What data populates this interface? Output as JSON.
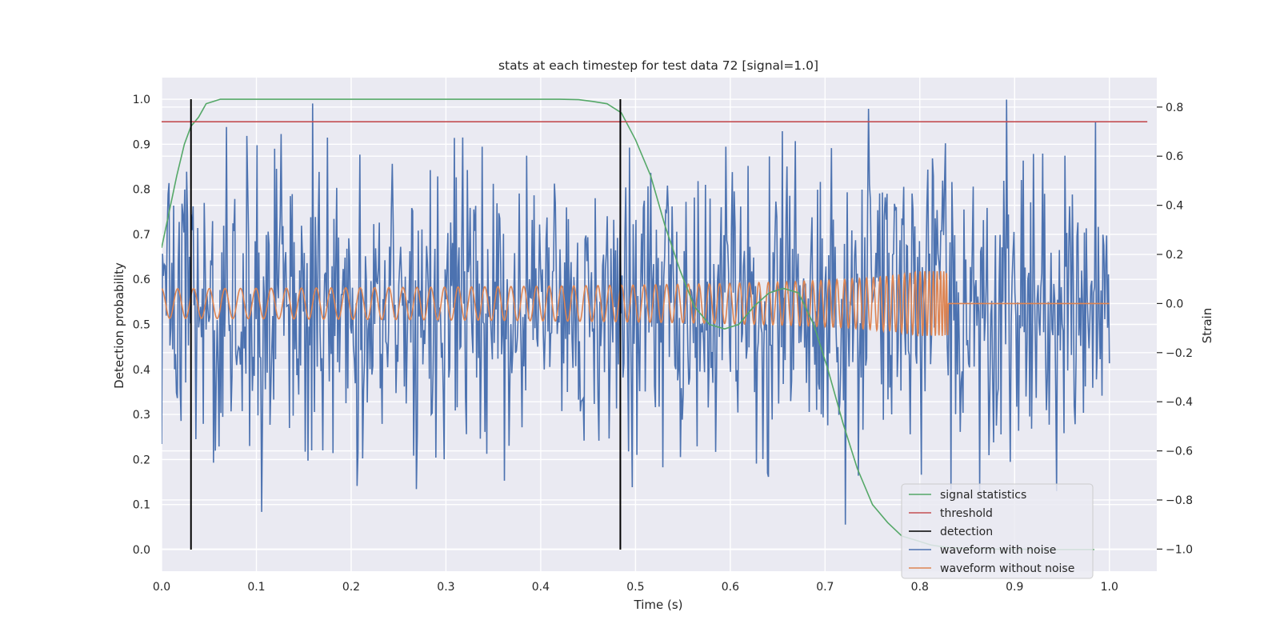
{
  "chart_data": {
    "type": "line",
    "title": "stats at each timestep for test data 72 [signal=1.0]",
    "xlabel": "Time (s)",
    "ylabel_left": "Detection probability",
    "ylabel_right": "Strain",
    "xlim": [
      0.0,
      1.05
    ],
    "ylim_left": [
      -0.048,
      1.048
    ],
    "ylim_right": [
      -1.09,
      0.92
    ],
    "x_ticks": [
      0.0,
      0.1,
      0.2,
      0.3,
      0.4,
      0.5,
      0.6,
      0.7,
      0.8,
      0.9,
      1.0
    ],
    "x_tick_labels": [
      "0.0",
      "0.1",
      "0.2",
      "0.3",
      "0.4",
      "0.5",
      "0.6",
      "0.7",
      "0.8",
      "0.9",
      "1.0"
    ],
    "y_left_ticks": [
      0.0,
      0.1,
      0.2,
      0.3,
      0.4,
      0.5,
      0.6,
      0.7,
      0.8,
      0.9,
      1.0
    ],
    "y_left_tick_labels": [
      "0.0",
      "0.1",
      "0.2",
      "0.3",
      "0.4",
      "0.5",
      "0.6",
      "0.7",
      "0.8",
      "0.9",
      "1.0"
    ],
    "y_right_ticks": [
      -1.0,
      -0.8,
      -0.6,
      -0.4,
      -0.2,
      0.0,
      0.2,
      0.4,
      0.6,
      0.8
    ],
    "y_right_tick_labels": [
      "−1.0",
      "−0.8",
      "−0.6",
      "−0.4",
      "−0.2",
      "0.0",
      "0.2",
      "0.4",
      "0.6",
      "0.8"
    ],
    "grid": true,
    "legend_position": "lower-right",
    "colors": {
      "background": "#eaeaf2",
      "grid": "#ffffff",
      "signal_statistics": "#55a868",
      "threshold": "#c44e52",
      "detection": "#000000",
      "waveform_with_noise": "#4c72b0",
      "waveform_without_noise": "#dd8452"
    },
    "series": [
      {
        "name": "signal statistics",
        "axis": "left",
        "x": [
          0.0,
          0.008,
          0.016,
          0.024,
          0.031,
          0.039,
          0.047,
          0.062,
          0.078,
          0.1,
          0.2,
          0.3,
          0.4,
          0.42,
          0.44,
          0.455,
          0.47,
          0.485,
          0.5,
          0.516,
          0.531,
          0.547,
          0.562,
          0.578,
          0.594,
          0.609,
          0.625,
          0.641,
          0.656,
          0.664,
          0.672,
          0.688,
          0.703,
          0.719,
          0.734,
          0.75,
          0.766,
          0.781,
          0.797,
          0.812,
          0.828,
          0.844,
          0.859,
          0.875,
          0.891,
          0.906,
          0.922,
          0.938,
          0.953,
          0.969,
          0.984
        ],
        "y": [
          0.67,
          0.75,
          0.83,
          0.9,
          0.94,
          0.96,
          0.99,
          1.0,
          1.0,
          1.0,
          1.0,
          1.0,
          1.0,
          1.0,
          0.999,
          0.995,
          0.99,
          0.97,
          0.91,
          0.83,
          0.72,
          0.62,
          0.54,
          0.5,
          0.49,
          0.5,
          0.54,
          0.57,
          0.58,
          0.575,
          0.57,
          0.5,
          0.4,
          0.28,
          0.18,
          0.1,
          0.06,
          0.03,
          0.02,
          0.01,
          0.005,
          0.003,
          0.002,
          0.001,
          0.001,
          0.001,
          0.0,
          0.0,
          0.0,
          0.0,
          0.0
        ]
      },
      {
        "name": "threshold",
        "axis": "left",
        "x": [
          0.0,
          1.04
        ],
        "y": [
          0.95,
          0.95
        ]
      },
      {
        "name": "detection",
        "axis": "left",
        "x": [
          0.031,
          0.484
        ],
        "y": [
          0.0,
          1.0
        ]
      },
      {
        "name": "waveform with noise",
        "axis": "right",
        "x_range": [
          0.0,
          1.0
        ],
        "points": 1024,
        "y_approx_range": [
          -1.0,
          0.85
        ]
      },
      {
        "name": "waveform without noise",
        "axis": "right",
        "x_range": [
          0.0,
          1.0
        ],
        "amplitude_approx": 0.06,
        "ends_at_x": 0.83
      }
    ]
  }
}
